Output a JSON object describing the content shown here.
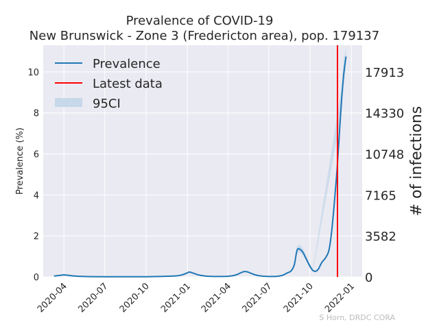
{
  "chart_data": {
    "type": "line",
    "title": "Prevalence of COVID-19",
    "subtitle": "New Brunswick - Zone 3 (Fredericton area), pop. 179137",
    "ylabel": "Prevalence (%)",
    "ylabel_right": "# of infections",
    "ylim": [
      0,
      11.3
    ],
    "xlim": [
      "2020-02-15",
      "2022-01-25"
    ],
    "grid": true,
    "background": "#eaeaf2",
    "x_ticks": [
      "2020-04",
      "2020-07",
      "2020-10",
      "2021-01",
      "2021-04",
      "2021-07",
      "2021-10",
      "2022-01"
    ],
    "y_ticks": [
      0,
      2,
      4,
      6,
      8,
      10
    ],
    "y_right_ticks": [
      0,
      3582,
      7165,
      10748,
      14330,
      17913
    ],
    "legend": {
      "position": "top-left",
      "entries": [
        "Prevalence",
        "Latest data",
        "95CI"
      ]
    },
    "series": [
      {
        "name": "Prevalence",
        "color": "#1f77b4",
        "x": [
          "2020-03-10",
          "2020-03-25",
          "2020-04-01",
          "2020-04-10",
          "2020-04-25",
          "2020-05-15",
          "2020-07-01",
          "2020-10-01",
          "2020-12-01",
          "2020-12-20",
          "2021-01-01",
          "2021-01-05",
          "2021-01-12",
          "2021-01-25",
          "2021-02-10",
          "2021-03-01",
          "2021-04-01",
          "2021-04-15",
          "2021-04-25",
          "2021-05-05",
          "2021-05-12",
          "2021-05-20",
          "2021-06-01",
          "2021-06-15",
          "2021-07-01",
          "2021-07-20",
          "2021-08-01",
          "2021-08-10",
          "2021-08-20",
          "2021-08-27",
          "2021-09-02",
          "2021-09-08",
          "2021-09-15",
          "2021-09-22",
          "2021-09-30",
          "2021-10-07",
          "2021-10-14",
          "2021-10-20",
          "2021-10-27",
          "2021-11-05",
          "2021-11-12",
          "2021-11-18",
          "2021-11-24",
          "2021-11-30",
          "2021-12-05",
          "2021-12-10",
          "2021-12-15",
          "2021-12-20"
        ],
        "values": [
          0.04,
          0.08,
          0.1,
          0.08,
          0.04,
          0.02,
          0.01,
          0.01,
          0.04,
          0.1,
          0.2,
          0.24,
          0.2,
          0.1,
          0.04,
          0.02,
          0.03,
          0.07,
          0.15,
          0.25,
          0.26,
          0.2,
          0.1,
          0.04,
          0.02,
          0.03,
          0.08,
          0.18,
          0.3,
          0.6,
          1.3,
          1.35,
          1.2,
          0.9,
          0.55,
          0.32,
          0.28,
          0.4,
          0.7,
          0.95,
          1.3,
          2.2,
          3.6,
          5.2,
          6.9,
          8.6,
          9.9,
          10.75
        ]
      },
      {
        "name": "95CI",
        "color": "#c6d8ea",
        "x": [
          "2021-08-27",
          "2021-09-02",
          "2021-09-08",
          "2021-09-15",
          "2021-09-22",
          "2021-09-30",
          "2021-10-07",
          "2021-12-10",
          "2021-12-15",
          "2021-12-20"
        ],
        "lower": [
          0.5,
          1.15,
          1.2,
          1.05,
          0.78,
          0.45,
          0.25,
          8.0,
          9.3,
          10.3
        ],
        "upper": [
          0.75,
          1.5,
          1.58,
          1.4,
          1.05,
          0.65,
          0.4,
          9.2,
          10.6,
          11.2
        ]
      }
    ],
    "latest_data": {
      "x": "2021-12-01",
      "color": "#ff0000"
    },
    "credit": "S Horn, DRDC CORA"
  }
}
